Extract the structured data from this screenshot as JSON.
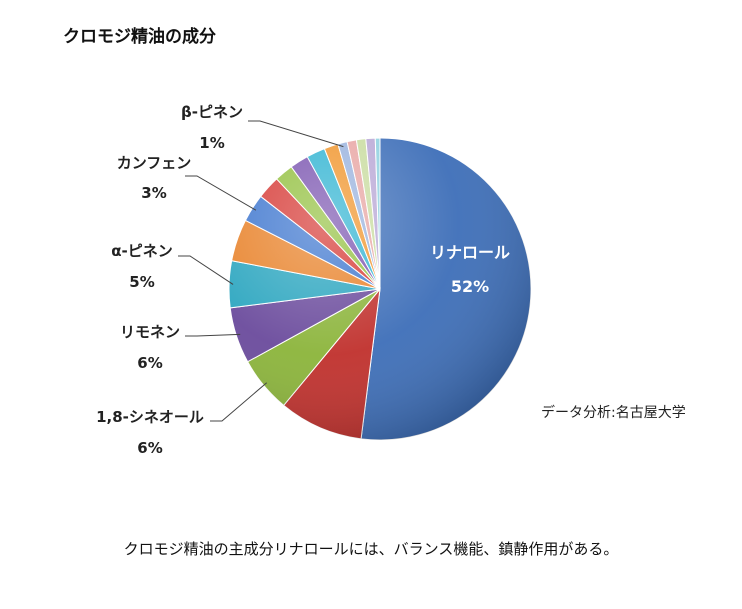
{
  "title": "クロモジ精油の成分",
  "source_note": "データ分析:名古屋大学",
  "caption": "クロモジ精油の主成分リナロールには、バランス機能、鎮静作用がある。",
  "chart_data": {
    "type": "pie",
    "title": "クロモジ精油の成分",
    "slices": [
      {
        "label": "リナロール",
        "value": 52,
        "pct_label": "52%",
        "color": "#3d6eb8",
        "labeled": true,
        "inside": true
      },
      {
        "label": "",
        "value": 9,
        "color": "#c0302c",
        "labeled": false
      },
      {
        "label": "1,8-シネオール",
        "value": 6,
        "pct_label": "6%",
        "color": "#8bb43a",
        "labeled": true
      },
      {
        "label": "リモネン",
        "value": 6,
        "pct_label": "6%",
        "color": "#6a4a9c",
        "labeled": true
      },
      {
        "label": "α-ピネン",
        "value": 5,
        "pct_label": "5%",
        "color": "#2aa5bf",
        "labeled": true
      },
      {
        "label": "",
        "value": 4.5,
        "color": "#e8822a",
        "labeled": false
      },
      {
        "label": "カンフェン",
        "value": 3,
        "pct_label": "3%",
        "color": "#3f77cf",
        "labeled": true
      },
      {
        "label": "",
        "value": 2.5,
        "color": "#d63a36",
        "labeled": false
      },
      {
        "label": "",
        "value": 2,
        "color": "#93c040",
        "labeled": false
      },
      {
        "label": "",
        "value": 2,
        "color": "#7b55b0",
        "labeled": false
      },
      {
        "label": "",
        "value": 2,
        "color": "#32b4d2",
        "labeled": false
      },
      {
        "label": "",
        "value": 1.5,
        "color": "#f0962e",
        "labeled": false
      },
      {
        "label": "β-ピネン",
        "value": 1,
        "pct_label": "1%",
        "color": "#9ab3de",
        "labeled": true
      },
      {
        "label": "",
        "value": 1,
        "color": "#e8a6a4",
        "labeled": false
      },
      {
        "label": "",
        "value": 1,
        "color": "#c9dca0",
        "labeled": false
      },
      {
        "label": "",
        "value": 1,
        "color": "#b9a8d6",
        "labeled": false
      },
      {
        "label": "",
        "value": 0.5,
        "color": "#8fd0e0",
        "labeled": false
      }
    ]
  }
}
